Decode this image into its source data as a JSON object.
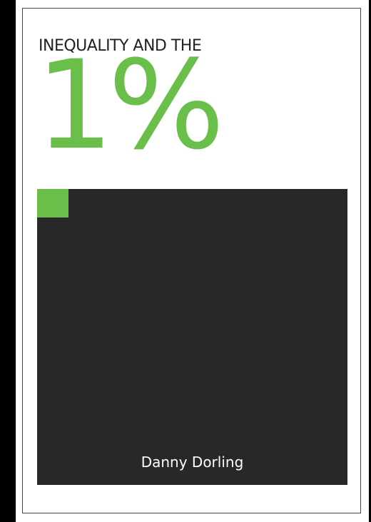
{
  "cover": {
    "title_line": "INEQUALITY AND THE",
    "big_title": "1%",
    "author": "Danny Dorling"
  },
  "colors": {
    "accent": "#6abf4b",
    "panel": "#282828",
    "background": "#ffffff",
    "frame": "#000000"
  }
}
